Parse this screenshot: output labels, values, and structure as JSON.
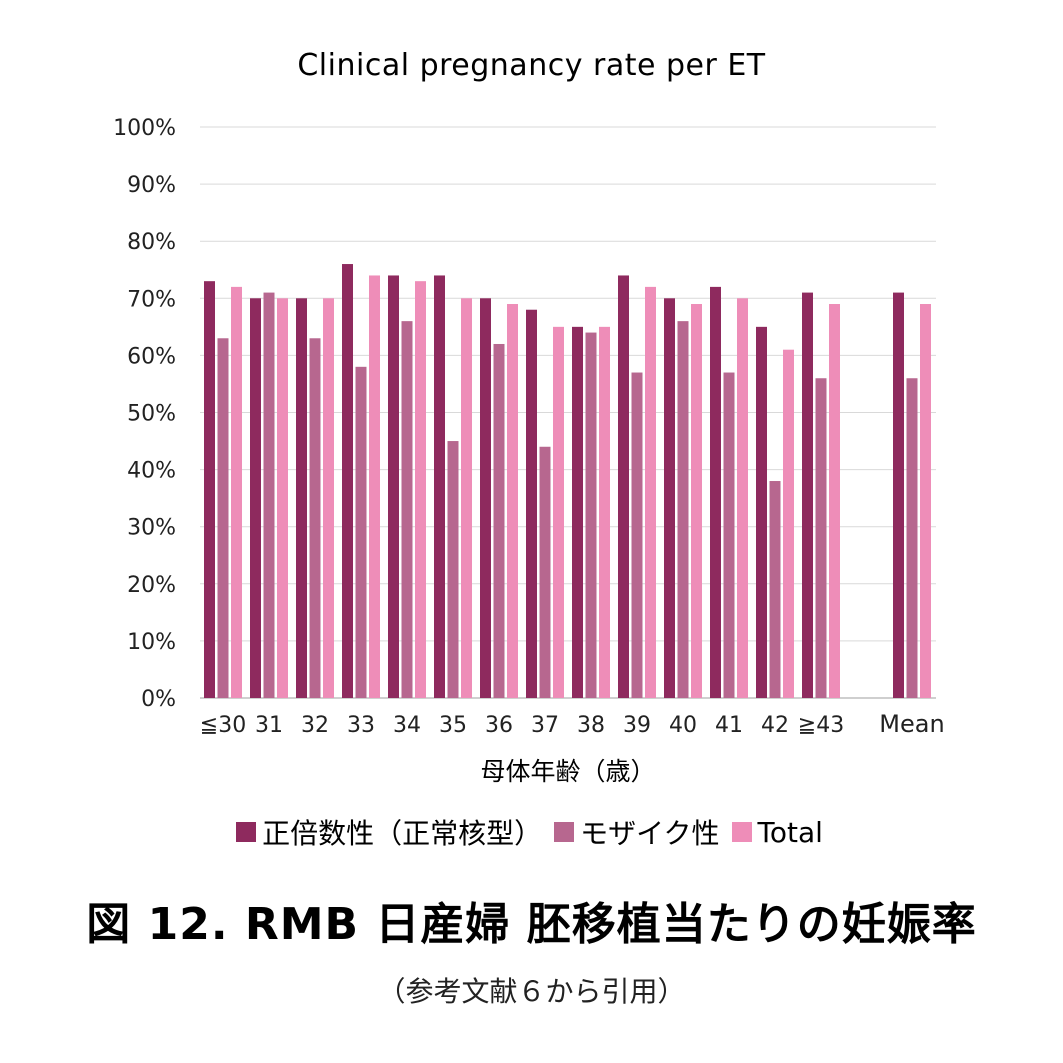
{
  "chart_data": {
    "type": "bar",
    "title": "Clinical pregnancy rate per ET",
    "xlabel": "母体年齢（歳）",
    "ylabel": "",
    "ylim": [
      0,
      100
    ],
    "yticks": [
      "0%",
      "10%",
      "20%",
      "30%",
      "40%",
      "50%",
      "60%",
      "70%",
      "80%",
      "90%",
      "100%"
    ],
    "grid": true,
    "legend_position": "bottom",
    "categories": [
      "≦30",
      "31",
      "32",
      "33",
      "34",
      "35",
      "36",
      "37",
      "38",
      "39",
      "40",
      "41",
      "42",
      "≧43",
      "Mean"
    ],
    "series": [
      {
        "name": "正倍数性（正常核型）",
        "color": "#8e2a5e",
        "values": [
          73,
          70,
          70,
          76,
          74,
          74,
          70,
          68,
          65,
          74,
          70,
          72,
          65,
          71,
          71
        ]
      },
      {
        "name": "モザイク性",
        "color": "#b7678f",
        "values": [
          63,
          71,
          63,
          58,
          66,
          45,
          62,
          44,
          64,
          57,
          66,
          57,
          38,
          56,
          56
        ]
      },
      {
        "name": "Total",
        "color": "#ee8db8",
        "values": [
          72,
          70,
          70,
          74,
          73,
          70,
          69,
          65,
          65,
          72,
          69,
          70,
          61,
          69,
          69
        ]
      }
    ]
  },
  "caption": "図 12.  RMB 日産婦 胚移植当たりの妊娠率",
  "source": "（参考文献６から引用）"
}
